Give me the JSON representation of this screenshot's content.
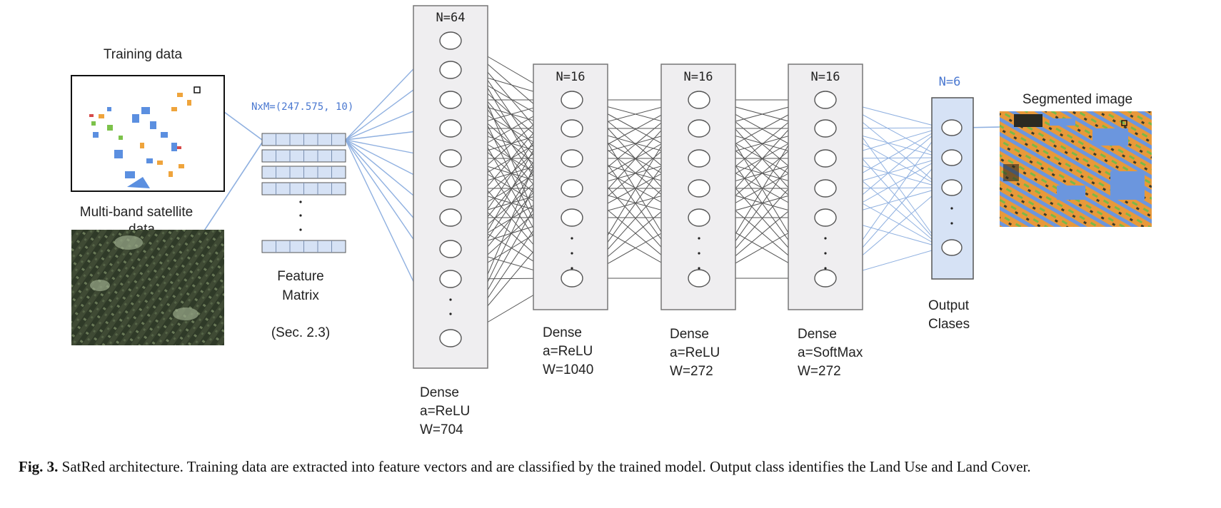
{
  "inputs": {
    "training_label": "Training data",
    "satellite_label": "Multi-band satellite",
    "satellite_label_2": "data"
  },
  "feature_matrix": {
    "dims": "NxM=(247.575, 10)",
    "label_line1": "Feature",
    "label_line2": "Matrix",
    "ref": "(Sec. 2.3)"
  },
  "layers": [
    {
      "n": "N=64",
      "type": "Dense",
      "activation": "a=ReLU",
      "weights": "W=704"
    },
    {
      "n": "N=16",
      "type": "Dense",
      "activation": "a=ReLU",
      "weights": "W=1040"
    },
    {
      "n": "N=16",
      "type": "Dense",
      "activation": "a=ReLU",
      "weights": "W=272"
    },
    {
      "n": "N=16",
      "type": "Dense",
      "activation": "a=SoftMax",
      "weights": "W=272"
    }
  ],
  "output": {
    "n": "N=6",
    "label_line1": "Output",
    "label_line2": "Clases"
  },
  "segmented_label": "Segmented image",
  "caption": {
    "fig": "Fig. 3.",
    "text": "SatRed architecture. Training data are extracted into feature vectors and are classified by the trained model. Output class identifies the Land Use and Land Cover."
  },
  "colors": {
    "blue_line": "#8fb0e0",
    "gray_line": "#555555",
    "layer_fill": "#efeef0",
    "output_fill": "#d6e2f5"
  }
}
